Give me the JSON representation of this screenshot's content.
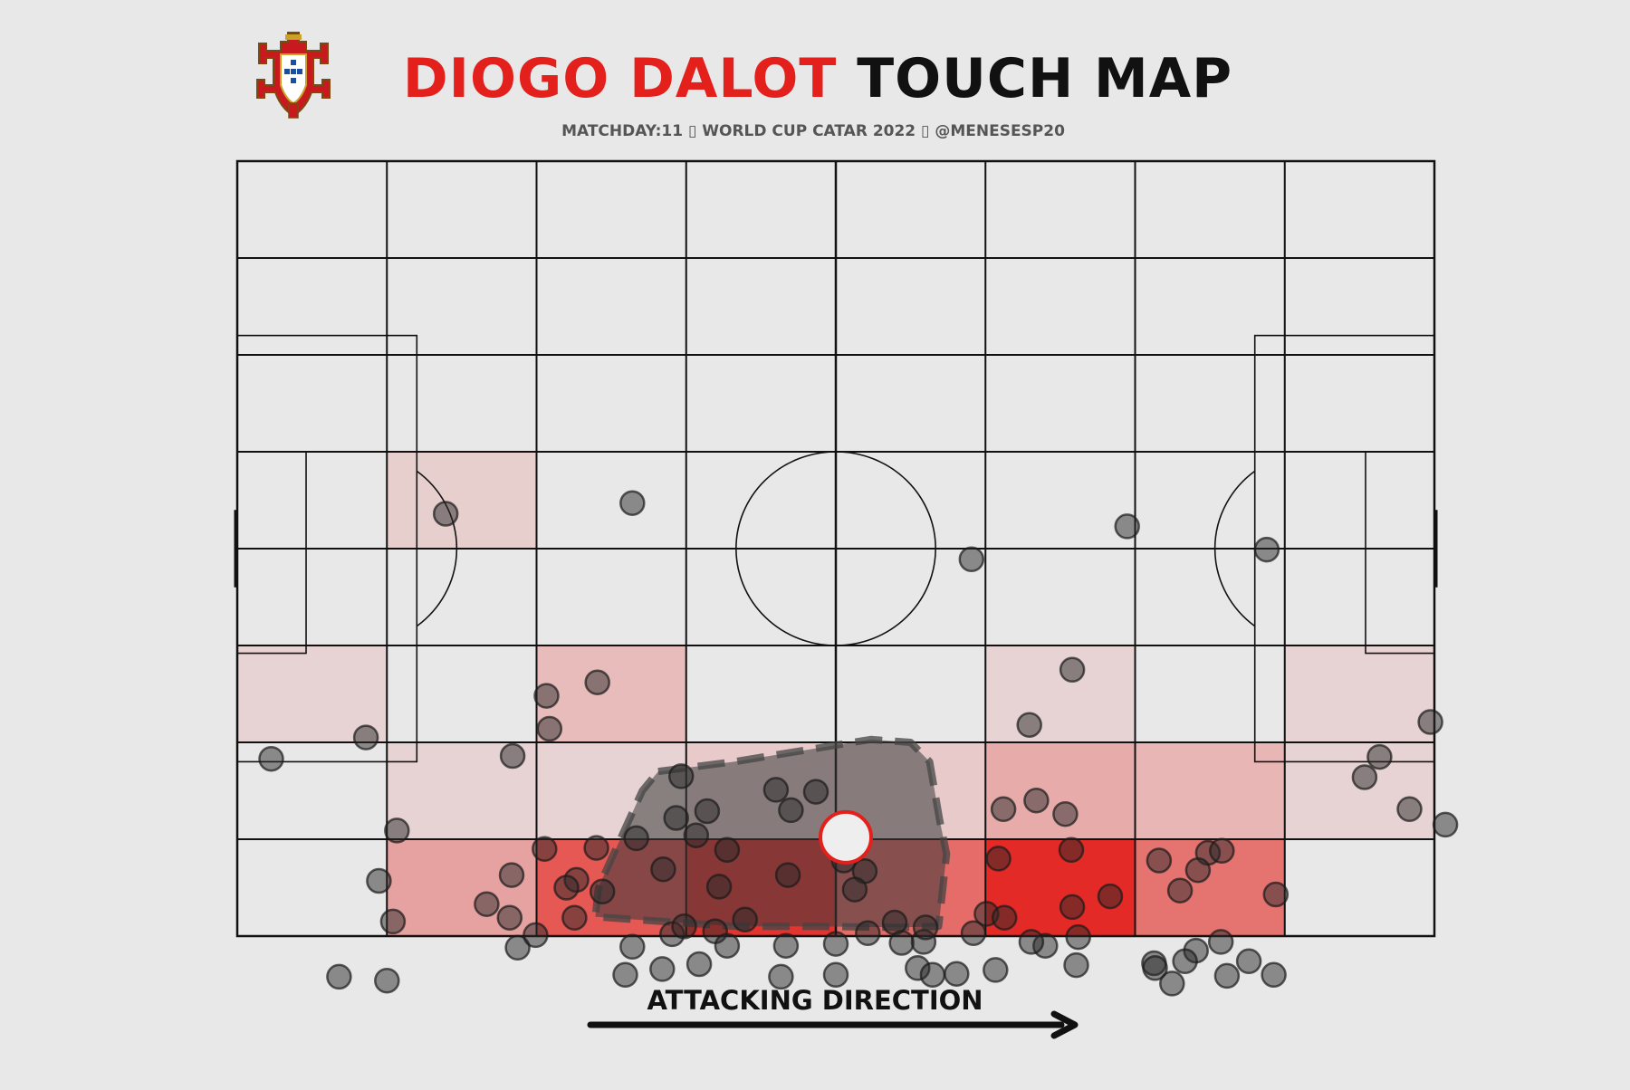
{
  "header": {
    "title_name": "DIOGO DALOT",
    "title_rest": "TOUCH MAP",
    "subtitle": "MATCHDAY:11 ▯ WORLD CUP CATAR 2022 ▯ @MENESESP20",
    "logo_icon": "portugal-fpf-crest"
  },
  "footer": {
    "direction_label": "ATTACKING DIRECTION",
    "arrow_icon": "arrow-right-icon"
  },
  "colors": {
    "background": "#e8e8e8",
    "accent_red": "#e3201b",
    "ink": "#111111",
    "touch_dot": "#2a2a2a"
  },
  "chart_data": {
    "type": "scatter",
    "title": "DIOGO DALOT TOUCH MAP",
    "pitch": {
      "length": 120,
      "width": 80,
      "grid_cols": 8,
      "grid_rows": 8
    },
    "heatmap_opacity": [
      [
        0,
        0,
        0,
        0,
        0,
        0,
        0,
        0
      ],
      [
        0,
        0,
        0,
        0,
        0,
        0,
        0,
        0
      ],
      [
        0,
        0,
        0,
        0,
        0,
        0,
        0,
        0
      ],
      [
        0,
        0.12,
        0,
        0,
        0,
        0,
        0,
        0
      ],
      [
        0,
        0,
        0,
        0,
        0,
        0,
        0,
        0
      ],
      [
        0.1,
        0,
        0.22,
        0,
        0,
        0.1,
        0,
        0.1
      ],
      [
        0,
        0.1,
        0.1,
        0.15,
        0.15,
        0.3,
        0.25,
        0.1
      ],
      [
        0,
        0.35,
        0.72,
        0.9,
        0.62,
        0.95,
        0.58,
        0
      ]
    ],
    "touches": [
      [
        20.9,
        36.4
      ],
      [
        39.6,
        35.3
      ],
      [
        12.9,
        59.5
      ],
      [
        3.4,
        61.7
      ],
      [
        73.6,
        41.1
      ],
      [
        89.2,
        37.7
      ],
      [
        103.2,
        40.1
      ],
      [
        31.0,
        55.2
      ],
      [
        36.1,
        53.8
      ],
      [
        31.3,
        58.6
      ],
      [
        27.6,
        61.4
      ],
      [
        83.7,
        52.5
      ],
      [
        79.4,
        58.2
      ],
      [
        44.5,
        63.5
      ],
      [
        54.0,
        64.9
      ],
      [
        58.0,
        65.1
      ],
      [
        44.0,
        67.8
      ],
      [
        40.0,
        69.9
      ],
      [
        47.1,
        67.1
      ],
      [
        55.5,
        67.0
      ],
      [
        46.0,
        69.6
      ],
      [
        36.0,
        70.9
      ],
      [
        30.8,
        71.0
      ],
      [
        16.0,
        69.1
      ],
      [
        27.5,
        73.7
      ],
      [
        49.1,
        71.1
      ],
      [
        42.7,
        73.1
      ],
      [
        34.0,
        74.2
      ],
      [
        33.0,
        75.0
      ],
      [
        36.6,
        75.4
      ],
      [
        48.3,
        74.9
      ],
      [
        55.2,
        73.7
      ],
      [
        60.8,
        72.2
      ],
      [
        62.9,
        73.3
      ],
      [
        61.9,
        75.2
      ],
      [
        76.8,
        66.9
      ],
      [
        80.1,
        66.0
      ],
      [
        83.0,
        67.4
      ],
      [
        83.6,
        71.1
      ],
      [
        76.3,
        72.0
      ],
      [
        87.5,
        75.9
      ],
      [
        94.5,
        75.3
      ],
      [
        92.4,
        72.2
      ],
      [
        97.3,
        71.4
      ],
      [
        98.7,
        71.2
      ],
      [
        96.3,
        73.2
      ],
      [
        104.1,
        75.7
      ],
      [
        119.6,
        57.9
      ],
      [
        114.5,
        61.5
      ],
      [
        113.0,
        63.6
      ],
      [
        121.1,
        68.5
      ],
      [
        117.5,
        66.9
      ],
      [
        15.6,
        78.5
      ],
      [
        14.2,
        74.3
      ],
      [
        25.0,
        76.7
      ],
      [
        27.3,
        78.1
      ],
      [
        28.1,
        81.2
      ],
      [
        29.9,
        79.9
      ],
      [
        33.8,
        78.1
      ],
      [
        39.6,
        81.1
      ],
      [
        43.6,
        79.8
      ],
      [
        44.8,
        79.0
      ],
      [
        47.9,
        79.5
      ],
      [
        49.1,
        81.0
      ],
      [
        50.9,
        78.3
      ],
      [
        55.0,
        81.0
      ],
      [
        60.0,
        80.8
      ],
      [
        63.2,
        79.7
      ],
      [
        65.9,
        78.6
      ],
      [
        66.6,
        80.7
      ],
      [
        68.8,
        80.6
      ],
      [
        69.0,
        79.1
      ],
      [
        73.8,
        79.7
      ],
      [
        75.1,
        77.7
      ],
      [
        76.9,
        78.1
      ],
      [
        81.0,
        81.0
      ],
      [
        79.6,
        80.6
      ],
      [
        84.3,
        80.1
      ],
      [
        83.7,
        77.0
      ],
      [
        91.9,
        82.8
      ],
      [
        93.7,
        84.9
      ],
      [
        96.1,
        81.5
      ],
      [
        98.6,
        80.6
      ],
      [
        101.4,
        82.6
      ],
      [
        10.2,
        84.2
      ],
      [
        15.0,
        84.6
      ],
      [
        38.9,
        84.0
      ],
      [
        42.6,
        83.4
      ],
      [
        46.3,
        82.9
      ],
      [
        54.5,
        84.2
      ],
      [
        60.0,
        84.0
      ],
      [
        68.2,
        83.3
      ],
      [
        69.7,
        84.0
      ],
      [
        72.1,
        83.9
      ],
      [
        76.0,
        83.5
      ],
      [
        84.1,
        83.0
      ],
      [
        92.0,
        83.3
      ],
      [
        95.0,
        82.6
      ],
      [
        99.2,
        84.1
      ],
      [
        103.9,
        84.0
      ]
    ],
    "hull": [
      [
        42.2,
        63.0
      ],
      [
        49.8,
        62.0
      ],
      [
        63.5,
        59.7
      ],
      [
        67.5,
        60.0
      ],
      [
        69.4,
        62.0
      ],
      [
        70.4,
        68.0
      ],
      [
        71.1,
        71.5
      ],
      [
        70.3,
        79.0
      ],
      [
        66.4,
        79.1
      ],
      [
        58.0,
        79.0
      ],
      [
        50.0,
        79.0
      ],
      [
        42.7,
        78.5
      ],
      [
        35.9,
        78.0
      ],
      [
        36.2,
        75.0
      ],
      [
        37.6,
        71.8
      ],
      [
        40.6,
        65.0
      ]
    ],
    "average_position": [
      61.0,
      69.8
    ]
  }
}
